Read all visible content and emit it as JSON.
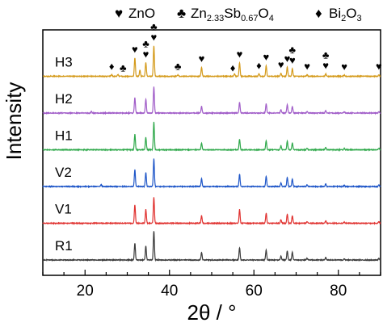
{
  "chart_data": {
    "type": "line",
    "title": "",
    "xlabel": "2θ / °",
    "ylabel": "Intensity",
    "xlim": [
      10,
      90
    ],
    "xticks": [
      20,
      40,
      60,
      80
    ],
    "xtick_labels": [
      "20",
      "40",
      "60",
      "80"
    ],
    "yticks": [],
    "grid": false,
    "stacked_offset_pattern": true,
    "legend_position": "top",
    "legend": [
      {
        "symbol": "♥",
        "label": "ZnO"
      },
      {
        "symbol": "♣",
        "label": "Zn",
        "sub1": "2.33",
        "mid": "Sb",
        "sub2": "0.67",
        "end": "O",
        "sub3": "4"
      },
      {
        "symbol": "♦",
        "label": "Bi",
        "sub1": "2",
        "end": "O",
        "sub2": "3"
      }
    ],
    "series": [
      {
        "name": "R1",
        "color": "#3a3a3a",
        "baseline": 0.0,
        "peaks": [
          [
            31.8,
            0.55
          ],
          [
            34.4,
            0.45
          ],
          [
            36.3,
            0.95
          ],
          [
            47.6,
            0.25
          ],
          [
            56.6,
            0.4
          ],
          [
            62.9,
            0.33
          ],
          [
            66.4,
            0.12
          ],
          [
            67.9,
            0.3
          ],
          [
            69.1,
            0.25
          ],
          [
            72.6,
            0.05
          ],
          [
            77.0,
            0.08
          ],
          [
            81.4,
            0.04
          ],
          [
            89.6,
            0.05
          ]
        ]
      },
      {
        "name": "V1",
        "color": "#e0302e",
        "baseline": 1.0,
        "peaks": [
          [
            31.8,
            0.6
          ],
          [
            34.4,
            0.45
          ],
          [
            36.3,
            0.85
          ],
          [
            47.6,
            0.25
          ],
          [
            56.6,
            0.45
          ],
          [
            62.9,
            0.33
          ],
          [
            66.4,
            0.12
          ],
          [
            67.9,
            0.3
          ],
          [
            69.1,
            0.25
          ],
          [
            72.6,
            0.05
          ],
          [
            77.0,
            0.08
          ],
          [
            81.4,
            0.04
          ],
          [
            89.6,
            0.05
          ]
        ]
      },
      {
        "name": "V2",
        "color": "#1e56c8",
        "baseline": 2.0,
        "peaks": [
          [
            23.8,
            0.06
          ],
          [
            31.8,
            0.55
          ],
          [
            34.4,
            0.45
          ],
          [
            36.3,
            0.9
          ],
          [
            47.6,
            0.25
          ],
          [
            56.6,
            0.4
          ],
          [
            62.9,
            0.33
          ],
          [
            66.4,
            0.12
          ],
          [
            67.9,
            0.3
          ],
          [
            69.1,
            0.25
          ],
          [
            72.6,
            0.05
          ],
          [
            77.0,
            0.08
          ],
          [
            81.4,
            0.04
          ],
          [
            89.6,
            0.05
          ]
        ]
      },
      {
        "name": "H1",
        "color": "#2ea84a",
        "baseline": 3.0,
        "peaks": [
          [
            31.8,
            0.5
          ],
          [
            34.4,
            0.4
          ],
          [
            36.3,
            0.9
          ],
          [
            47.6,
            0.22
          ],
          [
            56.6,
            0.35
          ],
          [
            62.9,
            0.3
          ],
          [
            66.4,
            0.12
          ],
          [
            67.9,
            0.28
          ],
          [
            69.1,
            0.22
          ],
          [
            72.6,
            0.05
          ],
          [
            77.0,
            0.08
          ],
          [
            81.4,
            0.04
          ],
          [
            89.6,
            0.05
          ]
        ]
      },
      {
        "name": "H2",
        "color": "#a05cc8",
        "baseline": 4.0,
        "peaks": [
          [
            21.5,
            0.05
          ],
          [
            31.8,
            0.5
          ],
          [
            34.4,
            0.45
          ],
          [
            36.3,
            0.85
          ],
          [
            47.6,
            0.22
          ],
          [
            56.6,
            0.35
          ],
          [
            62.9,
            0.3
          ],
          [
            66.4,
            0.1
          ],
          [
            67.9,
            0.28
          ],
          [
            69.1,
            0.22
          ],
          [
            72.6,
            0.05
          ],
          [
            77.0,
            0.08
          ],
          [
            81.4,
            0.04
          ],
          [
            89.6,
            0.05
          ]
        ]
      },
      {
        "name": "H3",
        "color": "#d49a1a",
        "baseline": 5.0,
        "peaks": [
          [
            26.3,
            0.05
          ],
          [
            27.8,
            0.06
          ],
          [
            31.8,
            0.6
          ],
          [
            33.0,
            0.2
          ],
          [
            34.4,
            0.45
          ],
          [
            36.3,
            1.0
          ],
          [
            42.0,
            0.05
          ],
          [
            47.6,
            0.3
          ],
          [
            55.4,
            0.08
          ],
          [
            56.6,
            0.45
          ],
          [
            61.2,
            0.08
          ],
          [
            62.9,
            0.35
          ],
          [
            66.4,
            0.1
          ],
          [
            67.9,
            0.3
          ],
          [
            69.1,
            0.25
          ],
          [
            72.6,
            0.05
          ],
          [
            77.0,
            0.08
          ],
          [
            81.4,
            0.04
          ],
          [
            89.6,
            0.05
          ]
        ]
      }
    ],
    "annotations": [
      {
        "series": "H3",
        "symbols": "♦",
        "x": 26.3
      },
      {
        "series": "H3",
        "symbols": "♣",
        "x": 29.0
      },
      {
        "series": "H3",
        "symbols": "♥",
        "x": 31.8
      },
      {
        "series": "H3",
        "symbols": "♣♥",
        "x": 34.4
      },
      {
        "series": "H3",
        "symbols": "♣♥",
        "x": 36.3
      },
      {
        "series": "H3",
        "symbols": "♣",
        "x": 42.0
      },
      {
        "series": "H3",
        "symbols": "♥",
        "x": 47.6
      },
      {
        "series": "H3",
        "symbols": "♦",
        "x": 55.0
      },
      {
        "series": "H3",
        "symbols": "♥",
        "x": 56.6
      },
      {
        "series": "H3",
        "symbols": "♦",
        "x": 61.2
      },
      {
        "series": "H3",
        "symbols": "♥",
        "x": 62.9
      },
      {
        "series": "H3",
        "symbols": "♥",
        "x": 66.4
      },
      {
        "series": "H3",
        "symbols": "♥",
        "x": 67.9
      },
      {
        "series": "H3",
        "symbols": "♣♥",
        "x": 69.1
      },
      {
        "series": "H3",
        "symbols": "♥",
        "x": 72.6
      },
      {
        "series": "H3",
        "symbols": "♣♥",
        "x": 77.0
      },
      {
        "series": "H3",
        "symbols": "♥",
        "x": 81.4
      },
      {
        "series": "H3",
        "symbols": "♥",
        "x": 89.6
      }
    ]
  }
}
